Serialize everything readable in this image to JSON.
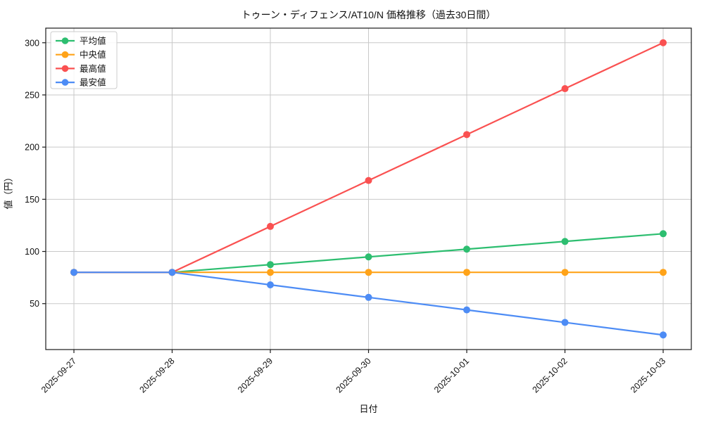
{
  "chart_data": {
    "type": "line",
    "title": "トゥーン・ディフェンス/AT10/N 価格推移（過去30日間）",
    "xlabel": "日付",
    "ylabel": "値（円）",
    "x": [
      "2025-09-27",
      "2025-09-28",
      "2025-09-29",
      "2025-09-30",
      "2025-10-01",
      "2025-10-02",
      "2025-10-03"
    ],
    "series": [
      {
        "name": "平均値",
        "color": "#2dbe70",
        "values": [
          80,
          80,
          87.4,
          94.8,
          102.2,
          109.6,
          117
        ]
      },
      {
        "name": "中央値",
        "color": "#ffa319",
        "values": [
          80,
          80,
          80,
          80,
          80,
          80,
          80
        ]
      },
      {
        "name": "最高値",
        "color": "#fa5151",
        "values": [
          80,
          80,
          124,
          168,
          212,
          256,
          300
        ]
      },
      {
        "name": "最安値",
        "color": "#4d8cf5",
        "values": [
          80,
          80,
          68,
          56,
          44,
          32,
          20
        ]
      }
    ],
    "yticks": [
      50,
      100,
      150,
      200,
      250,
      300
    ],
    "ylim": [
      6,
      314
    ],
    "grid": true,
    "legend_position": "upper-left",
    "marker": "circle",
    "x_tick_rotation": 45
  },
  "style": {
    "grid_color": "#c9c9c9",
    "spine_color": "#1a1a1a",
    "legend_border": "#cccccc",
    "background": "#ffffff"
  }
}
